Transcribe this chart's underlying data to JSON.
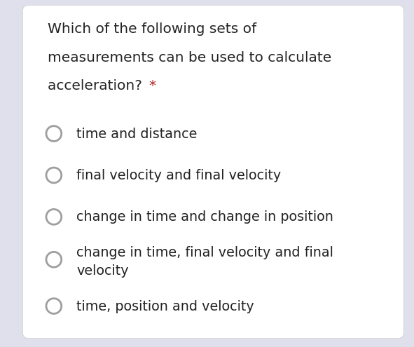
{
  "background_color": "#ffffff",
  "outer_background_color": "#e0e0ec",
  "question_lines": [
    "Which of the following sets of",
    "measurements can be used to calculate",
    "acceleration? "
  ],
  "question_asterisk": "*",
  "options": [
    "time and distance",
    "final velocity and final velocity",
    "change in time and change in position",
    "change in time, final velocity and final\nvelocity",
    "time, position and velocity"
  ],
  "text_color": "#222222",
  "asterisk_color": "#b22222",
  "circle_edge_color": "#9e9e9e",
  "circle_fill_color": "#ffffff",
  "question_fontsize": 14.5,
  "option_fontsize": 13.8,
  "figwidth": 5.91,
  "figheight": 4.95,
  "dpi": 100
}
